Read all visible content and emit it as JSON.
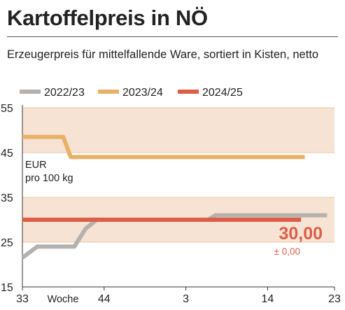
{
  "header": {
    "title": "Kartoffelpreis in NÖ",
    "subtitle": "Erzeugerpreis für mittelfallende Ware, sortiert in Kisten, netto"
  },
  "chart_data": {
    "type": "line",
    "title": "Kartoffelpreis in NÖ",
    "subtitle": "Erzeugerpreis für mittelfallende Ware, sortiert in Kisten, netto",
    "ylabel": [
      "EUR",
      "pro 100 kg"
    ],
    "xlabel": "Woche",
    "ylim": [
      15,
      55
    ],
    "y_ticks": [
      15,
      25,
      35,
      45,
      55
    ],
    "x_tick_labels": [
      "33",
      "44",
      "3",
      "14",
      "23"
    ],
    "x_tick_weeks": [
      33,
      44,
      55,
      66,
      75
    ],
    "x_range": [
      33,
      75
    ],
    "shaded_bands": [
      [
        25,
        35
      ],
      [
        45,
        55
      ]
    ],
    "legend_position": "top",
    "colors": {
      "band": "#f7e3d4",
      "grid": "#e8c4a9",
      "series_2022": "#b5b1ad",
      "series_2023": "#e9b06a",
      "series_2024": "#dd5d46",
      "highlight": "#dd5d46"
    },
    "series": [
      {
        "name": "2022/23",
        "color": "#b5b1ad",
        "points": [
          [
            33,
            21.5
          ],
          [
            35,
            24
          ],
          [
            40,
            24
          ],
          [
            41.5,
            28
          ],
          [
            43,
            30
          ],
          [
            58,
            30
          ],
          [
            59,
            31
          ],
          [
            74,
            31
          ]
        ]
      },
      {
        "name": "2023/24",
        "color": "#e9b06a",
        "points": [
          [
            33,
            48.5
          ],
          [
            38.5,
            48.5
          ],
          [
            39.5,
            44
          ],
          [
            71,
            44
          ]
        ]
      },
      {
        "name": "2024/25",
        "color": "#dd5d46",
        "points": [
          [
            33,
            30
          ],
          [
            70.5,
            30
          ]
        ]
      }
    ],
    "annotation": {
      "value": "30,00",
      "change": "± 0,00"
    }
  }
}
